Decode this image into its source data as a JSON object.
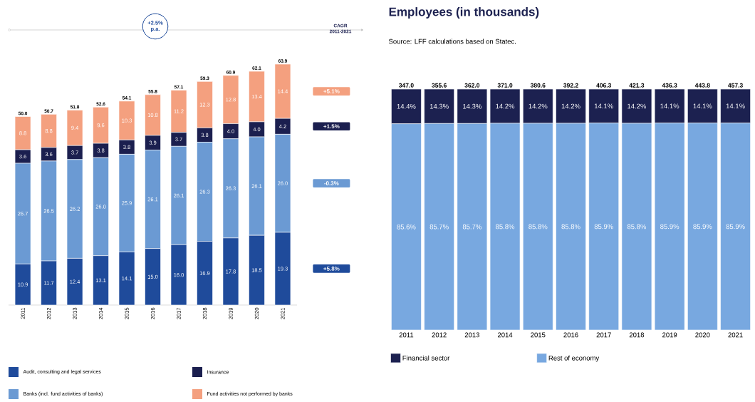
{
  "chart_data": [
    {
      "type": "bar",
      "stacked": true,
      "legend": "bottom",
      "categories": [
        "2011",
        "2012",
        "2013",
        "2014",
        "2015",
        "2016",
        "2017",
        "2018",
        "2019",
        "2020",
        "2021"
      ],
      "series": [
        {
          "name": "Audit, consulting and legal services",
          "color": "#1f4b9b",
          "values": [
            10.9,
            11.7,
            12.4,
            13.1,
            14.1,
            15.0,
            16.0,
            16.9,
            17.8,
            18.5,
            19.3
          ],
          "value_labels": [
            "10.9",
            "11.7",
            "12.4",
            "13.1",
            "14.1",
            "15.0",
            "16.0",
            "16.9",
            "17.8",
            "18.5",
            "19.3"
          ]
        },
        {
          "name": "Banks (incl. fund activities of banks)",
          "color": "#6b9ad3",
          "values": [
            26.7,
            26.5,
            26.2,
            26.0,
            25.9,
            26.1,
            26.1,
            26.3,
            26.3,
            26.1,
            26.0
          ],
          "value_labels": [
            "26.7",
            "26.5",
            "26.2",
            "26.0",
            "25.9",
            "26.1",
            "26.1",
            "26.3",
            "26.3",
            "26.1",
            "26.0"
          ]
        },
        {
          "name": "Insurance",
          "color": "#1b1f4f",
          "values": [
            3.6,
            3.6,
            3.7,
            3.8,
            3.8,
            3.9,
            3.7,
            3.8,
            4.0,
            4.0,
            4.2
          ],
          "value_labels": [
            "3.6",
            "3.6",
            "3.7",
            "3.8",
            "3.8",
            "3.9",
            "3.7",
            "3.8",
            "4.0",
            "4.0",
            "4.2"
          ]
        },
        {
          "name": "Fund activities not performed by banks",
          "color": "#f4a07f",
          "values": [
            8.8,
            8.8,
            9.4,
            9.6,
            10.3,
            10.8,
            11.2,
            12.3,
            12.8,
            13.4,
            14.4
          ],
          "value_labels": [
            "8.8",
            "8.8",
            "9.4",
            "9.6",
            "10.3",
            "10.8",
            "11.2",
            "12.3",
            "12.8",
            "13.4",
            "14.4"
          ]
        }
      ],
      "totals": [
        "50.0",
        "50.7",
        "51.8",
        "52.6",
        "54.1",
        "55.8",
        "57.1",
        "59.3",
        "60.9",
        "62.1",
        "63.9"
      ],
      "annotations": [
        "+2.5% p.a.",
        "CAGR 2011-2021",
        "+5.1%",
        "+1.5%",
        "-0.3%",
        "+5.8%"
      ]
    },
    {
      "type": "bar",
      "stacked": true,
      "legend": "bottom",
      "title": "Employees (in thousands)",
      "subtitle": "Source: LFF calculations based on Statec.",
      "categories": [
        "2011",
        "2012",
        "2013",
        "2014",
        "2015",
        "2016",
        "2017",
        "2018",
        "2019",
        "2020",
        "2021"
      ],
      "series": [
        {
          "name": "Rest of economy",
          "color": "#78a8e0",
          "values": [
            85.6,
            85.7,
            85.7,
            85.8,
            85.8,
            85.8,
            85.9,
            85.8,
            85.9,
            85.9,
            85.9
          ],
          "value_labels": [
            "85.6%",
            "85.7%",
            "85.7%",
            "85.8%",
            "85.8%",
            "85.8%",
            "85.9%",
            "85.8%",
            "85.9%",
            "85.9%",
            "85.9%"
          ]
        },
        {
          "name": "Financial sector",
          "color": "#1c2150",
          "values": [
            14.4,
            14.3,
            14.3,
            14.2,
            14.2,
            14.2,
            14.1,
            14.2,
            14.1,
            14.1,
            14.1
          ],
          "value_labels": [
            "14.4%",
            "14.3%",
            "14.3%",
            "14.2%",
            "14.2%",
            "14.2%",
            "14.1%",
            "14.2%",
            "14.1%",
            "14.1%",
            "14.1%"
          ]
        }
      ],
      "annotations": [
        {
          "text": "347.0",
          "x": "2011",
          "y": 100
        },
        {
          "text": "355.6",
          "x": "2012",
          "y": 100
        },
        {
          "text": "362.0",
          "x": "2013",
          "y": 100
        },
        {
          "text": "371.0",
          "x": "2014",
          "y": 100
        },
        {
          "text": "380.6",
          "x": "2015",
          "y": 100
        },
        {
          "text": "392.2",
          "x": "2016",
          "y": 100
        },
        {
          "text": "406.3",
          "x": "2017",
          "y": 100
        },
        {
          "text": "421.3",
          "x": "2018",
          "y": 100
        },
        {
          "text": "436.3",
          "x": "2019",
          "y": 100
        },
        {
          "text": "443.8",
          "x": "2020",
          "y": 100
        },
        {
          "text": "457.3",
          "x": "2021",
          "y": 100
        }
      ]
    }
  ]
}
